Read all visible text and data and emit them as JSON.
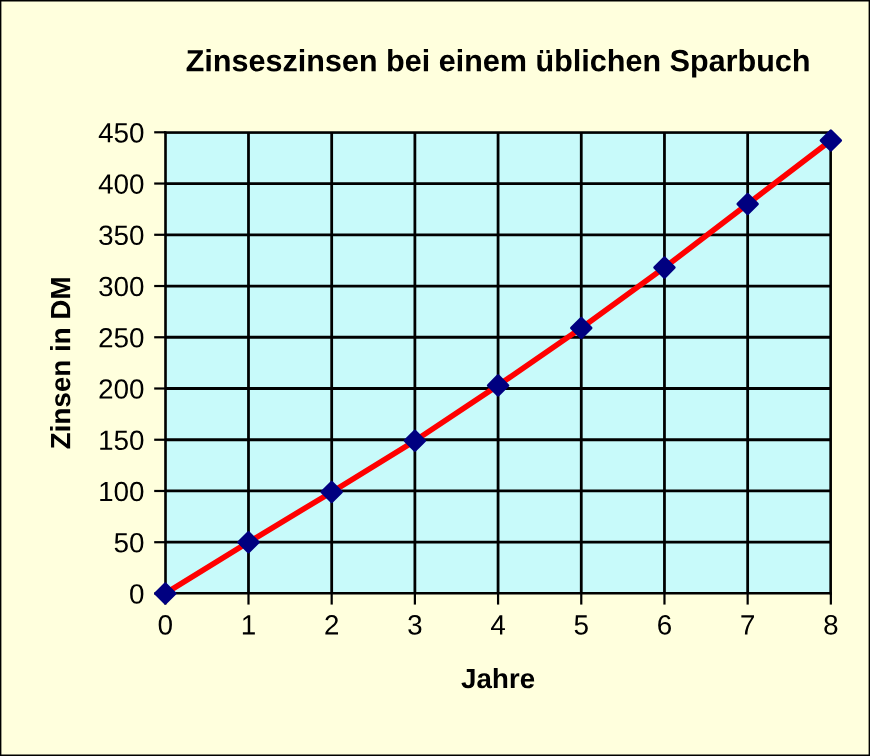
{
  "chart_data": {
    "type": "line",
    "title": "Zinseszinsen bei einem üblichen Sparbuch",
    "xlabel": "Jahre",
    "ylabel": "Zinsen in DM",
    "x": [
      0,
      1,
      2,
      3,
      4,
      5,
      6,
      7,
      8
    ],
    "series": [
      {
        "color": "#ff0000",
        "colors": [
          "#000080",
          "#000080",
          "#000080",
          "#000080",
          "#000080",
          "#000080",
          "#000080",
          "#000080",
          "#000080"
        ],
        "values": [
          0,
          50,
          99,
          149,
          203,
          259,
          318,
          380,
          442
        ]
      }
    ],
    "xlim": [
      0,
      8
    ],
    "xticks": [
      0,
      1,
      2,
      3,
      4,
      5,
      6,
      7,
      8
    ],
    "ylim": [
      0,
      450
    ],
    "yticks": [
      0,
      50,
      100,
      150,
      200,
      250,
      300,
      350,
      400,
      450
    ],
    "grid": true,
    "marker": "diamond",
    "line_style": "solid",
    "legend": false
  }
}
